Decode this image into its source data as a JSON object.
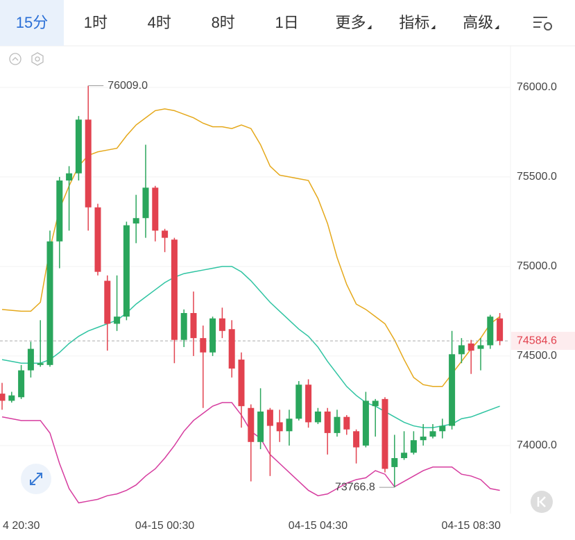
{
  "toolbar": {
    "tabs": [
      {
        "label": "15分",
        "selected": true,
        "dropdown": false
      },
      {
        "label": "1时",
        "selected": false,
        "dropdown": false
      },
      {
        "label": "4时",
        "selected": false,
        "dropdown": false
      },
      {
        "label": "8时",
        "selected": false,
        "dropdown": false
      },
      {
        "label": "1日",
        "selected": false,
        "dropdown": false
      },
      {
        "label": "更多",
        "selected": false,
        "dropdown": true
      },
      {
        "label": "指标",
        "selected": false,
        "dropdown": true
      },
      {
        "label": "高级",
        "selected": false,
        "dropdown": true
      }
    ]
  },
  "chart_data": {
    "type": "candlestick",
    "categories": [
      null,
      "4 20:30",
      null,
      null,
      null,
      null,
      null,
      null,
      null,
      null,
      null,
      null,
      null,
      null,
      null,
      null,
      null,
      "04-15 00:30",
      null,
      null,
      null,
      null,
      null,
      null,
      null,
      null,
      null,
      null,
      null,
      null,
      null,
      null,
      null,
      "04-15 04:30",
      null,
      null,
      null,
      null,
      null,
      null,
      null,
      null,
      null,
      null,
      null,
      null,
      null,
      null,
      null,
      "04-15 08:30",
      null,
      null,
      null
    ],
    "candles": {
      "open": [
        74290,
        74250,
        74270,
        74420,
        74450,
        74450,
        75140,
        75480,
        75520,
        75820,
        75330,
        74920,
        74680,
        74720,
        75240,
        75270,
        75440,
        75200,
        75150,
        74590,
        74740,
        74600,
        74520,
        74710,
        74650,
        74480,
        74210,
        74020,
        74200,
        74130,
        74080,
        74150,
        74340,
        74130,
        74190,
        74070,
        74160,
        74080,
        74000,
        74220,
        74260,
        73880,
        73930,
        73960,
        74030,
        74050,
        74080,
        74110,
        74510,
        74570,
        74540,
        74560,
        74710
      ],
      "high": [
        74350,
        74300,
        74450,
        74580,
        74700,
        75200,
        75500,
        75560,
        75840,
        76009,
        75350,
        74950,
        74950,
        75250,
        75400,
        75680,
        75450,
        75210,
        75160,
        74760,
        74860,
        74670,
        74720,
        74770,
        74700,
        74520,
        74230,
        74320,
        74210,
        74200,
        74200,
        74360,
        74370,
        74210,
        74210,
        74200,
        74170,
        74090,
        74300,
        74260,
        74270,
        74060,
        74080,
        74080,
        74120,
        74120,
        74150,
        74640,
        74600,
        74590,
        74600,
        74730,
        74740
      ],
      "low": [
        74200,
        74240,
        74260,
        74380,
        74440,
        74440,
        74990,
        75200,
        75480,
        75200,
        74950,
        74530,
        74640,
        74700,
        75130,
        75160,
        75140,
        75080,
        74460,
        74550,
        74500,
        74210,
        74500,
        74600,
        74380,
        74100,
        73800,
        73980,
        73830,
        74020,
        74000,
        74140,
        74100,
        74120,
        73950,
        74050,
        74060,
        73900,
        73990,
        74050,
        73850,
        73766.8,
        73920,
        73950,
        74000,
        74040,
        74040,
        74090,
        74460,
        74400,
        74420,
        74540,
        74560
      ],
      "close": [
        74250,
        74280,
        74420,
        74540,
        74460,
        75140,
        75480,
        75520,
        75820,
        75330,
        74970,
        74680,
        74720,
        75230,
        75270,
        75440,
        75200,
        75160,
        74590,
        74740,
        74600,
        74520,
        74710,
        74640,
        74430,
        74220,
        74020,
        74190,
        74110,
        74080,
        74150,
        74340,
        74130,
        74190,
        74070,
        74160,
        74090,
        73990,
        74250,
        74250,
        73870,
        73930,
        73960,
        74030,
        74050,
        74080,
        74110,
        74510,
        74560,
        74530,
        74560,
        74720,
        74584.6
      ]
    },
    "up_color": "#2aa65c",
    "down_color": "#e2424f",
    "bands": [
      {
        "color": "#e5a81a",
        "values": [
          74760,
          74755,
          74750,
          74750,
          74800,
          75100,
          75320,
          75450,
          75560,
          75620,
          75640,
          75650,
          75660,
          75730,
          75790,
          75830,
          75870,
          75880,
          75870,
          75850,
          75830,
          75800,
          75780,
          75780,
          75770,
          75790,
          75770,
          75680,
          75560,
          75510,
          75500,
          75490,
          75480,
          75380,
          75240,
          75050,
          74900,
          74790,
          74760,
          74720,
          74680,
          74590,
          74480,
          74380,
          74340,
          74330,
          74330,
          74400,
          74470,
          74540,
          74600,
          74680,
          74720
        ]
      },
      {
        "color": "#2fc4a2",
        "values": [
          74480,
          74470,
          74460,
          74460,
          74460,
          74480,
          74520,
          74570,
          74610,
          74640,
          74660,
          74680,
          74700,
          74740,
          74790,
          74830,
          74870,
          74910,
          74940,
          74960,
          74970,
          74980,
          74990,
          75000,
          75000,
          74970,
          74920,
          74860,
          74800,
          74750,
          74700,
          74650,
          74610,
          74550,
          74470,
          74400,
          74330,
          74280,
          74240,
          74220,
          74190,
          74160,
          74130,
          74110,
          74100,
          74100,
          74110,
          74120,
          74150,
          74160,
          74180,
          74200,
          74220
        ]
      },
      {
        "color": "#d63c9f",
        "values": [
          74160,
          74150,
          74140,
          74140,
          74140,
          74070,
          73900,
          73760,
          73680,
          73690,
          73700,
          73720,
          73730,
          73750,
          73780,
          73830,
          73870,
          73930,
          74000,
          74080,
          74140,
          74180,
          74220,
          74240,
          74240,
          74170,
          74080,
          74040,
          73950,
          73900,
          73850,
          73800,
          73750,
          73720,
          73730,
          73760,
          73790,
          73810,
          73820,
          73860,
          73840,
          73770,
          73800,
          73830,
          73860,
          73880,
          73880,
          73880,
          73840,
          73830,
          73810,
          73760,
          73750
        ]
      }
    ],
    "ylim": [
      73620,
      76232
    ],
    "yticks": [
      {
        "value": 74000,
        "label": "74000.0"
      },
      {
        "value": 74500,
        "label": "74500.0"
      },
      {
        "value": 75000,
        "label": "75000.0"
      },
      {
        "value": 75500,
        "label": "75500.0"
      },
      {
        "value": 76000,
        "label": "76000.0"
      }
    ],
    "grid": true,
    "max_label": {
      "value": 76009,
      "label": "76009.0"
    },
    "min_label": {
      "value": 73766.8,
      "label": "73766.8"
    },
    "last_price": {
      "value": 74584.6,
      "label": "74584.6"
    }
  }
}
